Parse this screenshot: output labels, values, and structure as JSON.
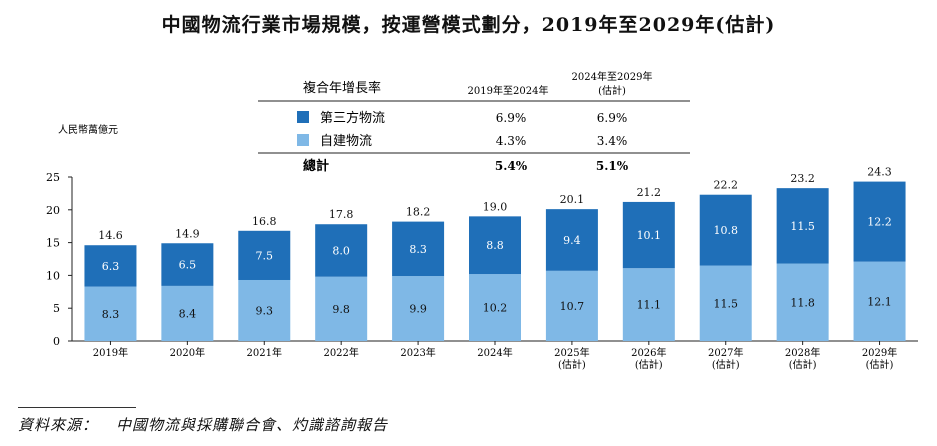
{
  "title": "中國物流行業市場規模，按運營模式劃分，2019年至2029年(估計)",
  "unit_label": "人民幣萬億元",
  "table": {
    "header": "複合年增長率",
    "col1": "2019年至2024年",
    "col2_line1": "2024年至2029年",
    "col2_line2": "(估計)",
    "rows": [
      {
        "label": "第三方物流",
        "v1": "6.9%",
        "v2": "6.9%",
        "color": "#1f6fb8"
      },
      {
        "label": "自建物流",
        "v1": "4.3%",
        "v2": "3.4%",
        "color": "#7fb8e6"
      }
    ],
    "total": {
      "label": "總計",
      "v1": "5.4%",
      "v2": "5.1%"
    }
  },
  "source": {
    "label": "資料來源：",
    "text": "中國物流與採購聯合會、灼識諮詢報告"
  },
  "chart_data": {
    "type": "bar",
    "stacked": true,
    "categories": [
      "2019年",
      "2020年",
      "2021年",
      "2022年",
      "2023年",
      "2024年",
      "2025年",
      "2026年",
      "2027年",
      "2028年",
      "2029年"
    ],
    "category_sublabels": [
      "",
      "",
      "",
      "",
      "",
      "",
      "(估計)",
      "(估計)",
      "(估計)",
      "(估計)",
      "(估計)"
    ],
    "series": [
      {
        "name": "自建物流",
        "values": [
          8.3,
          8.4,
          9.3,
          9.8,
          9.9,
          10.2,
          10.7,
          11.1,
          11.5,
          11.8,
          12.1
        ],
        "color": "#7fb8e6"
      },
      {
        "name": "第三方物流",
        "values": [
          6.3,
          6.5,
          7.5,
          8.0,
          8.3,
          8.8,
          9.4,
          10.1,
          10.8,
          11.5,
          12.2
        ],
        "color": "#1f6fb8"
      }
    ],
    "totals": [
      14.6,
      14.9,
      16.8,
      17.8,
      18.2,
      19.0,
      20.1,
      21.2,
      22.2,
      23.2,
      24.3
    ],
    "ylim": [
      0,
      25
    ],
    "yticks": [
      0,
      5,
      10,
      15,
      20,
      25
    ],
    "ylabel": "人民幣萬億元"
  }
}
